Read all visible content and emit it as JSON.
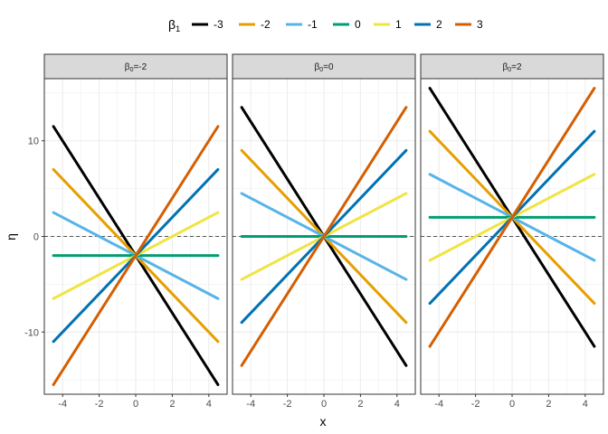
{
  "chart_data": {
    "type": "line",
    "xlabel": "x",
    "ylabel": "η",
    "xlim": [
      -5,
      5
    ],
    "ylim": [
      -16.5,
      16.5
    ],
    "x_range": [
      -4.5,
      4.5
    ],
    "x_ticks": [
      -4,
      -2,
      0,
      2,
      4
    ],
    "y_ticks": [
      -10,
      0,
      10
    ],
    "grid": true,
    "reference_line": {
      "y": 0,
      "style": "dashed"
    },
    "legend": {
      "title_base": "β",
      "title_sub": "1",
      "placement": "top"
    },
    "series": [
      {
        "name": "-3",
        "slope": -3,
        "color": "#000000"
      },
      {
        "name": "-2",
        "slope": -2,
        "color": "#E69F00"
      },
      {
        "name": "-1",
        "slope": -1,
        "color": "#56B4E9"
      },
      {
        "name": "0",
        "slope": 0,
        "color": "#009E73"
      },
      {
        "name": "1",
        "slope": 1,
        "color": "#F0E442"
      },
      {
        "name": "2",
        "slope": 2,
        "color": "#0072B2"
      },
      {
        "name": "3",
        "slope": 3,
        "color": "#D55E00"
      }
    ],
    "panels": [
      {
        "label_base": "β",
        "label_sub": "0",
        "label_rest": "=-2",
        "intercept": -2
      },
      {
        "label_base": "β",
        "label_sub": "0",
        "label_rest": "=0",
        "intercept": 0
      },
      {
        "label_base": "β",
        "label_sub": "0",
        "label_rest": "=2",
        "intercept": 2
      }
    ]
  }
}
